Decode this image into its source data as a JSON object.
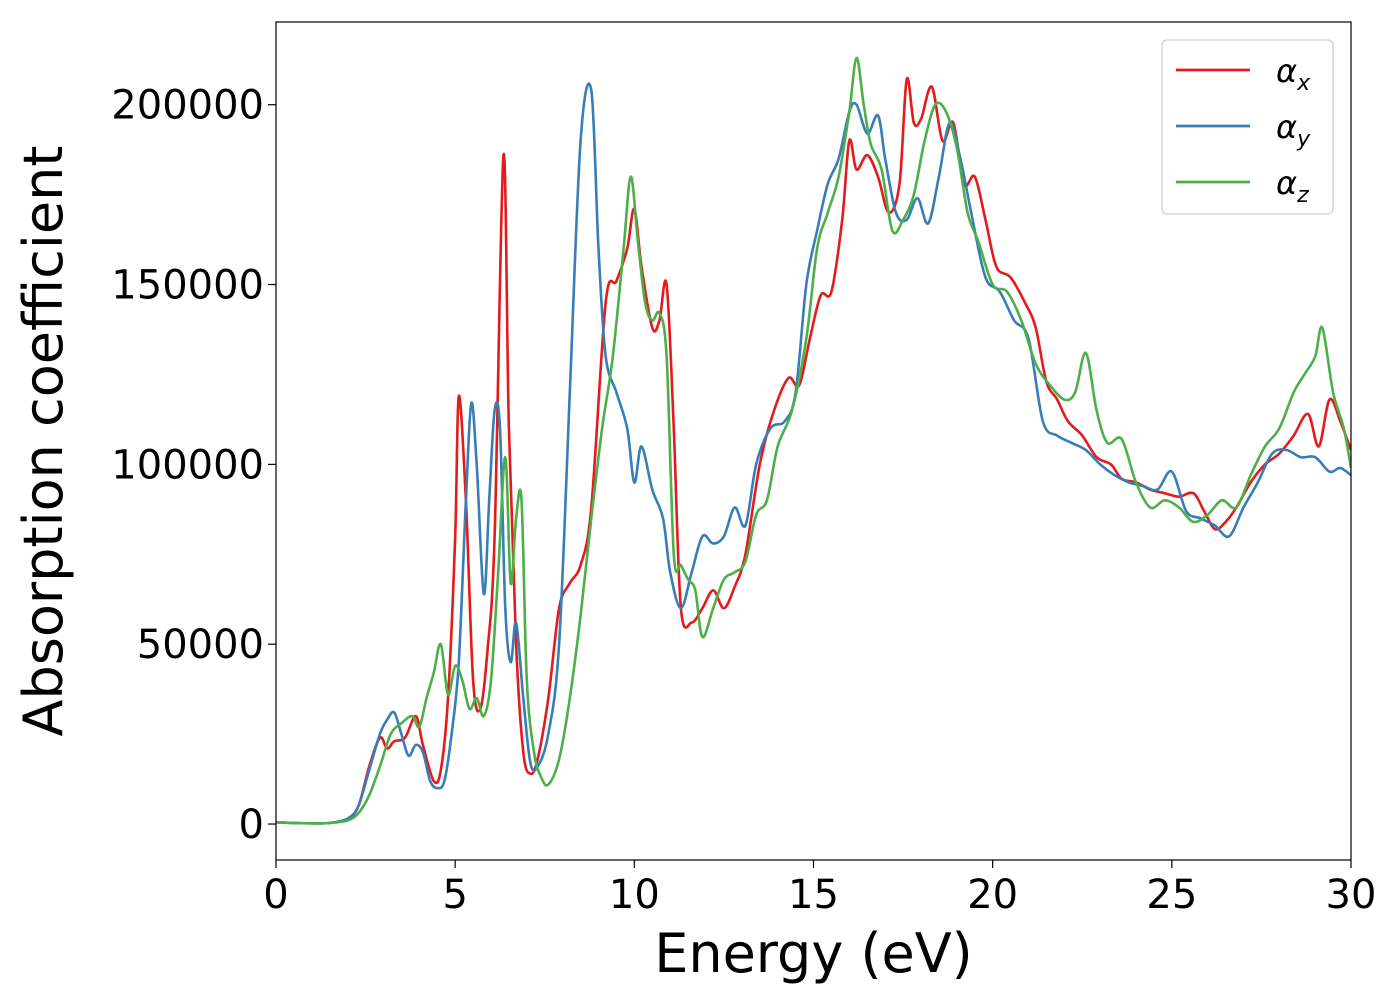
{
  "chart_data": {
    "type": "line",
    "title": "",
    "xlabel": "Energy (eV)",
    "ylabel": "Absorption coefficient",
    "xlim": [
      0,
      30
    ],
    "ylim": [
      -10000,
      223000
    ],
    "xticks": [
      0,
      5,
      10,
      15,
      20,
      25,
      30
    ],
    "yticks": [
      0,
      50000,
      100000,
      150000,
      200000
    ],
    "xtick_labels": [
      "0",
      "5",
      "10",
      "15",
      "20",
      "25",
      "30"
    ],
    "ytick_labels": [
      "0",
      "50000",
      "100000",
      "150000",
      "200000"
    ],
    "grid": false,
    "legend_position": "top-right",
    "series": [
      {
        "name": "α",
        "subscript": "x",
        "color": "#e41a1c",
        "x": [
          0,
          0.5,
          1,
          1.5,
          2,
          2.3,
          2.6,
          2.9,
          3.1,
          3.3,
          3.6,
          3.9,
          4.1,
          4.4,
          4.6,
          4.8,
          5.0,
          5.1,
          5.3,
          5.5,
          5.7,
          5.9,
          6.1,
          6.35,
          6.5,
          6.7,
          6.9,
          7.1,
          7.3,
          7.6,
          7.9,
          8.2,
          8.5,
          8.8,
          9.2,
          9.5,
          9.8,
          10.0,
          10.2,
          10.5,
          10.7,
          10.9,
          11.1,
          11.3,
          11.6,
          11.9,
          12.2,
          12.5,
          12.8,
          13.1,
          13.5,
          13.9,
          14.3,
          14.6,
          14.9,
          15.2,
          15.5,
          15.8,
          16.0,
          16.2,
          16.5,
          16.8,
          17.1,
          17.4,
          17.6,
          17.8,
          18.0,
          18.3,
          18.6,
          18.9,
          19.2,
          19.5,
          19.8,
          20.1,
          20.5,
          20.9,
          21.2,
          21.5,
          21.8,
          22.1,
          22.5,
          22.9,
          23.3,
          23.6,
          24.0,
          24.4,
          24.8,
          25.2,
          25.6,
          25.9,
          26.2,
          26.5,
          26.8,
          27.2,
          27.6,
          28.0,
          28.4,
          28.8,
          29.1,
          29.4,
          29.7,
          30.0
        ],
        "y": [
          500,
          300,
          200,
          300,
          1500,
          5000,
          16000,
          24000,
          21000,
          23000,
          24000,
          30000,
          22000,
          12000,
          15000,
          35000,
          80000,
          119000,
          90000,
          40000,
          32000,
          48000,
          80000,
          186000,
          110000,
          50000,
          20000,
          14000,
          18000,
          35000,
          60000,
          67000,
          72000,
          88000,
          145000,
          151000,
          160000,
          171000,
          155000,
          138000,
          140000,
          150000,
          110000,
          60000,
          56000,
          60000,
          65000,
          60000,
          66000,
          75000,
          100000,
          115000,
          124000,
          122000,
          135000,
          147000,
          148000,
          168000,
          190000,
          182000,
          186000,
          180000,
          170000,
          178000,
          207000,
          195000,
          196000,
          205000,
          190000,
          195000,
          178000,
          180000,
          168000,
          155000,
          152000,
          145000,
          138000,
          123000,
          118000,
          112000,
          108000,
          102000,
          100000,
          96000,
          95000,
          93000,
          92000,
          91000,
          92000,
          87000,
          82000,
          84000,
          88000,
          95000,
          100000,
          103000,
          108000,
          114000,
          105000,
          118000,
          112000,
          104000
        ]
      },
      {
        "name": "α",
        "subscript": "y",
        "color": "#377eb8",
        "x": [
          0,
          0.5,
          1,
          1.5,
          2,
          2.3,
          2.6,
          2.9,
          3.1,
          3.3,
          3.5,
          3.7,
          3.9,
          4.1,
          4.3,
          4.5,
          4.7,
          4.9,
          5.1,
          5.3,
          5.45,
          5.6,
          5.8,
          5.95,
          6.1,
          6.25,
          6.4,
          6.55,
          6.7,
          6.9,
          7.1,
          7.3,
          7.6,
          7.9,
          8.2,
          8.5,
          8.8,
          9.0,
          9.2,
          9.5,
          9.8,
          10.0,
          10.2,
          10.5,
          10.8,
          11.0,
          11.3,
          11.6,
          11.9,
          12.2,
          12.5,
          12.8,
          13.1,
          13.4,
          13.8,
          14.2,
          14.5,
          14.8,
          15.1,
          15.4,
          15.7,
          16.0,
          16.2,
          16.5,
          16.8,
          17.0,
          17.3,
          17.6,
          17.9,
          18.2,
          18.5,
          18.8,
          19.1,
          19.4,
          19.8,
          20.2,
          20.6,
          21.0,
          21.4,
          21.8,
          22.2,
          22.6,
          23.0,
          23.4,
          23.8,
          24.2,
          24.6,
          25.0,
          25.4,
          25.8,
          26.2,
          26.6,
          27.0,
          27.4,
          27.8,
          28.2,
          28.6,
          29.0,
          29.4,
          29.7,
          30.0
        ],
        "y": [
          500,
          300,
          200,
          300,
          1500,
          5000,
          15000,
          25000,
          29000,
          31000,
          25000,
          19000,
          22000,
          20000,
          12000,
          10000,
          12000,
          25000,
          45000,
          90000,
          117000,
          100000,
          64000,
          90000,
          115000,
          110000,
          60000,
          45000,
          56000,
          35000,
          17000,
          16000,
          25000,
          50000,
          120000,
          190000,
          204000,
          160000,
          130000,
          120000,
          110000,
          95000,
          105000,
          93000,
          85000,
          70000,
          60000,
          70000,
          80000,
          78000,
          80000,
          88000,
          83000,
          100000,
          110000,
          112000,
          120000,
          150000,
          165000,
          178000,
          185000,
          198000,
          200000,
          192000,
          197000,
          185000,
          170000,
          168000,
          174000,
          167000,
          180000,
          195000,
          185000,
          170000,
          152000,
          148000,
          140000,
          135000,
          112000,
          108000,
          106000,
          104000,
          100000,
          97000,
          95000,
          94000,
          93000,
          98000,
          87000,
          85000,
          83000,
          80000,
          88000,
          95000,
          103000,
          104000,
          102000,
          102000,
          98000,
          99000,
          97000
        ]
      },
      {
        "name": "α",
        "subscript": "z",
        "color": "#4daf4a",
        "x": [
          0,
          0.5,
          1,
          1.5,
          2,
          2.3,
          2.6,
          2.9,
          3.2,
          3.5,
          3.8,
          4.0,
          4.2,
          4.4,
          4.6,
          4.8,
          5.0,
          5.2,
          5.4,
          5.6,
          5.8,
          6.0,
          6.2,
          6.4,
          6.55,
          6.7,
          6.85,
          7.0,
          7.2,
          7.4,
          7.6,
          7.9,
          8.2,
          8.5,
          8.8,
          9.1,
          9.4,
          9.7,
          9.9,
          10.1,
          10.3,
          10.5,
          10.7,
          10.9,
          11.1,
          11.3,
          11.5,
          11.7,
          11.9,
          12.2,
          12.5,
          12.8,
          13.1,
          13.4,
          13.7,
          14.0,
          14.4,
          14.8,
          15.1,
          15.4,
          15.7,
          16.0,
          16.2,
          16.4,
          16.6,
          16.9,
          17.2,
          17.5,
          17.8,
          18.1,
          18.4,
          18.7,
          19.0,
          19.3,
          19.6,
          20.0,
          20.4,
          20.8,
          21.2,
          21.6,
          22.0,
          22.3,
          22.6,
          22.9,
          23.2,
          23.6,
          24.0,
          24.4,
          24.8,
          25.2,
          25.6,
          26.0,
          26.4,
          26.8,
          27.2,
          27.6,
          28.0,
          28.4,
          28.7,
          29.0,
          29.2,
          29.5,
          29.8,
          30.0
        ],
        "y": [
          500,
          300,
          200,
          300,
          1000,
          3000,
          8000,
          16000,
          25000,
          28000,
          30000,
          27000,
          35000,
          42000,
          50000,
          36000,
          44000,
          40000,
          32000,
          35000,
          30000,
          40000,
          70000,
          102000,
          67000,
          85000,
          90000,
          40000,
          20000,
          13000,
          11000,
          18000,
          35000,
          58000,
          85000,
          110000,
          130000,
          160000,
          180000,
          162000,
          145000,
          140000,
          142000,
          130000,
          75000,
          72000,
          68000,
          65000,
          52000,
          60000,
          68000,
          70000,
          73000,
          86000,
          90000,
          105000,
          115000,
          135000,
          160000,
          170000,
          180000,
          198000,
          213000,
          200000,
          189000,
          182000,
          165000,
          168000,
          175000,
          190000,
          200000,
          198000,
          188000,
          170000,
          162000,
          150000,
          148000,
          140000,
          128000,
          122000,
          118000,
          120000,
          131000,
          115000,
          106000,
          107000,
          95000,
          88000,
          90000,
          88000,
          84000,
          86000,
          90000,
          88000,
          97000,
          105000,
          110000,
          120000,
          125000,
          130000,
          138000,
          120000,
          110000,
          99000
        ]
      }
    ]
  }
}
